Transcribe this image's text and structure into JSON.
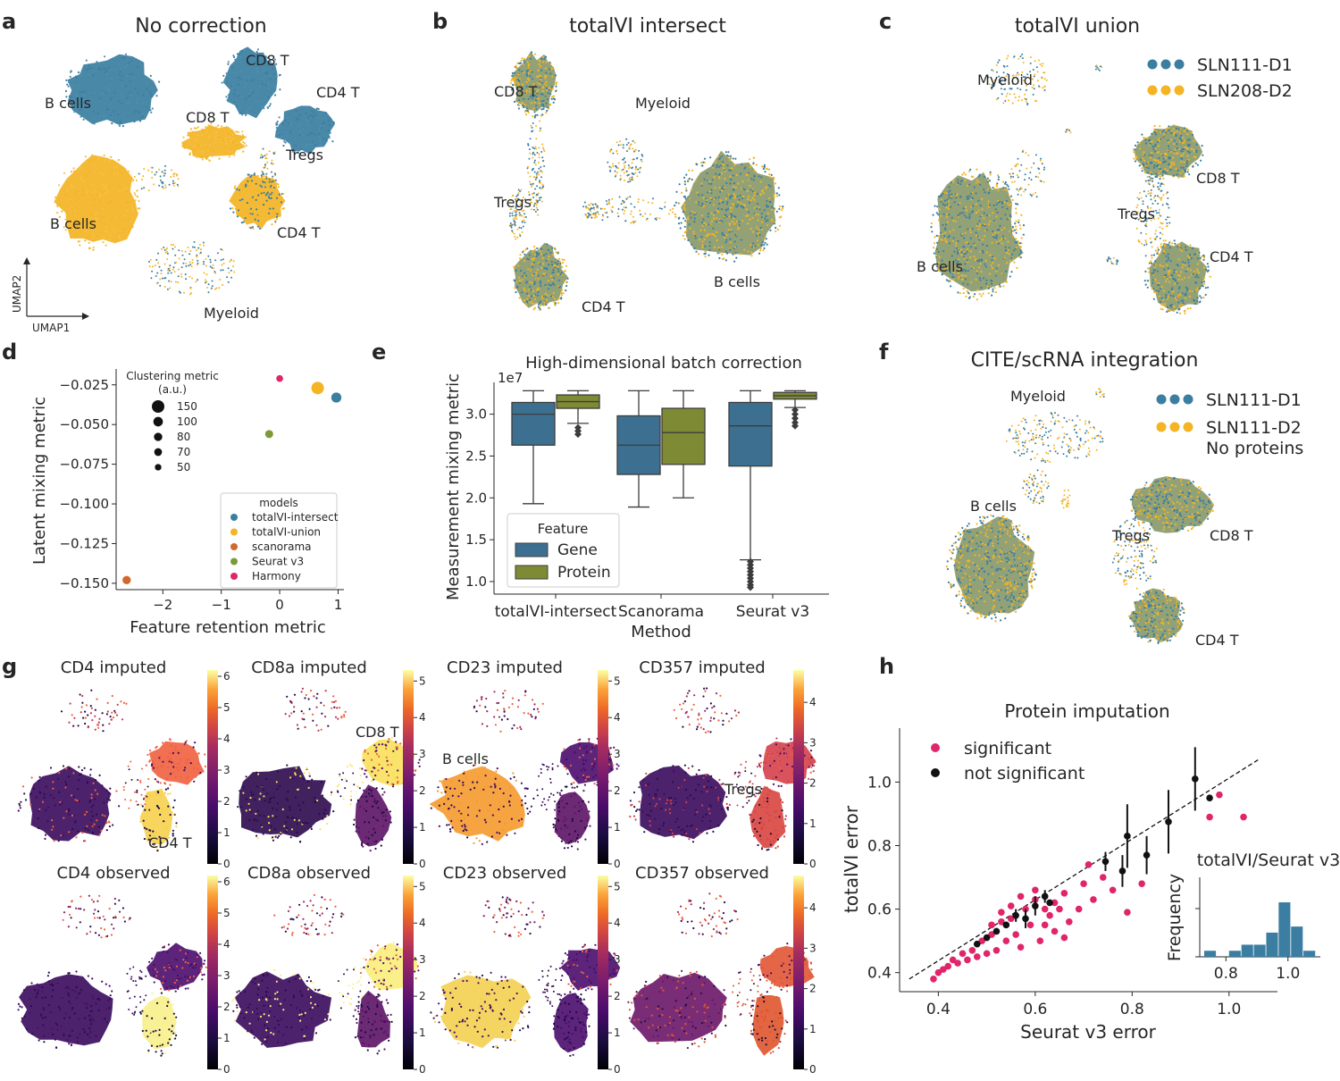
{
  "colors": {
    "batch1": "#3b7ea1",
    "batch2": "#f4b424",
    "gene": "#3d7090",
    "protein": "#7f8a35",
    "totalvi_intersect": "#3b7ea1",
    "totalvi_union": "#f4b424",
    "scanorama": "#d2692c",
    "seurat": "#7b9b39",
    "harmony": "#e0256a",
    "significant": "#e0256a",
    "not_significant": "#111111"
  },
  "panels": {
    "a": {
      "letter": "a",
      "title": "No correction",
      "labels": [
        "B cells",
        "CD8 T",
        "CD4 T",
        "CD8 T",
        "Tregs",
        "B cells",
        "CD4 T",
        "Myeloid"
      ],
      "axis_x": "UMAP1",
      "axis_y": "UMAP2"
    },
    "b": {
      "letter": "b",
      "title": "totalVI intersect",
      "labels": [
        "CD8 T",
        "Myeloid",
        "Tregs",
        "B cells",
        "CD4 T"
      ]
    },
    "c": {
      "letter": "c",
      "title": "totalVI union",
      "labels": [
        "Myeloid",
        "CD8 T",
        "Tregs",
        "B cells",
        "CD4 T"
      ],
      "legend": [
        "SLN111-D1",
        "SLN208-D2"
      ]
    },
    "d": {
      "letter": "d"
    },
    "e": {
      "letter": "e"
    },
    "f": {
      "letter": "f",
      "title": "CITE/scRNA integration",
      "labels": [
        "Myeloid",
        "B cells",
        "Tregs",
        "CD8 T",
        "CD4 T"
      ],
      "legend": [
        "SLN111-D1",
        "SLN111-D2",
        "No proteins"
      ]
    },
    "g": {
      "letter": "g",
      "maps": [
        {
          "title": "CD4 imputed",
          "ticks": [
            "0",
            "1",
            "2",
            "3",
            "4",
            "5",
            "6"
          ],
          "label": "CD4 T"
        },
        {
          "title": "CD8a imputed",
          "ticks": [
            "0",
            "1",
            "2",
            "3",
            "4",
            "5"
          ],
          "label": "CD8 T"
        },
        {
          "title": "CD23 imputed",
          "ticks": [
            "0",
            "1",
            "2",
            "3",
            "4",
            "5"
          ],
          "label": "B cells"
        },
        {
          "title": "CD357 imputed",
          "ticks": [
            "0",
            "1",
            "2",
            "3",
            "4"
          ],
          "label": "Tregs"
        },
        {
          "title": "CD4 observed",
          "ticks": [
            "0",
            "1",
            "2",
            "3",
            "4",
            "5",
            "6"
          ],
          "label": ""
        },
        {
          "title": "CD8a observed",
          "ticks": [
            "0",
            "1",
            "2",
            "3",
            "4",
            "5"
          ],
          "label": ""
        },
        {
          "title": "CD23 observed",
          "ticks": [
            "0",
            "1",
            "2",
            "3",
            "4",
            "5"
          ],
          "label": ""
        },
        {
          "title": "CD357 observed",
          "ticks": [
            "0",
            "1",
            "2",
            "3",
            "4"
          ],
          "label": ""
        }
      ]
    },
    "h": {
      "letter": "h"
    }
  },
  "chart_data": [
    {
      "panel": "d",
      "type": "scatter",
      "xlabel": "Feature retention metric",
      "ylabel": "Latent mixing metric",
      "xlim": [
        -2.8,
        1.1
      ],
      "ylim": [
        -0.154,
        -0.015
      ],
      "xticks": [
        -2,
        -1,
        0,
        1
      ],
      "yticks": [
        -0.025,
        -0.05,
        -0.075,
        -0.1,
        -0.125,
        -0.15
      ],
      "xtick_labels": [
        "−2",
        "−1",
        "0",
        "1"
      ],
      "ytick_labels": [
        "−0.025",
        "−0.050",
        "−0.075",
        "−0.100",
        "−0.125",
        "−0.150"
      ],
      "points": [
        {
          "model": "totalVI-intersect",
          "x": 0.97,
          "y": -0.033,
          "clustering": 110
        },
        {
          "model": "totalVI-union",
          "x": 0.65,
          "y": -0.027,
          "clustering": 150
        },
        {
          "model": "scanorama",
          "x": -2.62,
          "y": -0.148,
          "clustering": 80
        },
        {
          "model": "Seurat v3",
          "x": -0.18,
          "y": -0.056,
          "clustering": 75
        },
        {
          "model": "Harmony",
          "x": 0.0,
          "y": -0.021,
          "clustering": 55
        }
      ],
      "size_legend": {
        "title": "Clustering metric (a.u.)",
        "title_line1": "Clustering metric",
        "title_line2": "(a.u.)",
        "values": [
          "150",
          "100",
          "80",
          "70",
          "50"
        ]
      },
      "legend_title": "models",
      "legend": [
        "totalVI-intersect",
        "totalVI-union",
        "scanorama",
        "Seurat v3",
        "Harmony"
      ]
    },
    {
      "panel": "e",
      "type": "box",
      "title": "High-dimensional batch correction",
      "xlabel": "Method",
      "ylabel": "Measurement mixing metric",
      "scale_label": "1e7",
      "ylim": [
        0.85,
        3.38
      ],
      "yticks": [
        1.0,
        1.5,
        2.0,
        2.5,
        3.0
      ],
      "ytick_labels": [
        "1.0",
        "1.5",
        "2.0",
        "2.5",
        "3.0"
      ],
      "categories": [
        "totalVI-intersect",
        "Scanorama",
        "Seurat v3"
      ],
      "legend_title": "Feature",
      "series": [
        {
          "name": "Gene",
          "boxes": [
            {
              "whislo": 1.93,
              "q1": 2.63,
              "med": 3.0,
              "q3": 3.14,
              "whishi": 3.28,
              "fliers": []
            },
            {
              "whislo": 1.89,
              "q1": 2.28,
              "med": 2.63,
              "q3": 2.98,
              "whishi": 3.28,
              "fliers": []
            },
            {
              "whislo": 1.26,
              "q1": 2.38,
              "med": 2.86,
              "q3": 3.14,
              "whishi": 3.28,
              "fliers": [
                1.24,
                1.2,
                1.16,
                1.12,
                1.08,
                1.04,
                1.0,
                0.96,
                0.93
              ]
            }
          ]
        },
        {
          "name": "Protein",
          "boxes": [
            {
              "whislo": 2.89,
              "q1": 3.07,
              "med": 3.15,
              "q3": 3.23,
              "whishi": 3.28,
              "fliers": [
                2.84,
                2.8,
                2.76
              ]
            },
            {
              "whislo": 2.0,
              "q1": 2.4,
              "med": 2.78,
              "q3": 3.07,
              "whishi": 3.28,
              "fliers": []
            },
            {
              "whislo": 3.08,
              "q1": 3.18,
              "med": 3.22,
              "q3": 3.26,
              "whishi": 3.28,
              "fliers": [
                3.05,
                3.0,
                2.95,
                2.9,
                2.86
              ]
            }
          ]
        }
      ]
    },
    {
      "panel": "h",
      "type": "scatter",
      "title": "Protein imputation",
      "xlabel": "Seurat v3 error",
      "ylabel": "totalVI error",
      "xlim": [
        0.32,
        1.1
      ],
      "ylim": [
        0.34,
        1.17
      ],
      "xticks": [
        0.4,
        0.6,
        0.8,
        1.0
      ],
      "yticks": [
        0.4,
        0.6,
        0.8,
        1.0
      ],
      "xtick_labels": [
        "0.4",
        "0.6",
        "0.8",
        "1.0"
      ],
      "ytick_labels": [
        "0.4",
        "0.6",
        "0.8",
        "1.0"
      ],
      "legend": [
        "significant",
        "not significant"
      ],
      "identity_line": [
        [
          0.34,
          0.38
        ],
        [
          1.06,
          1.07
        ]
      ],
      "not_significant": [
        {
          "x": 0.93,
          "y": 1.01,
          "err": 0.1
        },
        {
          "x": 0.96,
          "y": 0.95,
          "err": 0.01
        },
        {
          "x": 0.875,
          "y": 0.875,
          "err": 0.1
        },
        {
          "x": 0.79,
          "y": 0.83,
          "err": 0.1
        },
        {
          "x": 0.83,
          "y": 0.77,
          "err": 0.06
        },
        {
          "x": 0.745,
          "y": 0.75,
          "err": 0.03
        },
        {
          "x": 0.78,
          "y": 0.72,
          "err": 0.05
        },
        {
          "x": 0.62,
          "y": 0.64,
          "err": 0.02
        },
        {
          "x": 0.6,
          "y": 0.61,
          "err": 0.03
        },
        {
          "x": 0.58,
          "y": 0.57,
          "err": 0.03
        },
        {
          "x": 0.56,
          "y": 0.58,
          "err": 0.02
        },
        {
          "x": 0.52,
          "y": 0.53,
          "err": 0.01
        },
        {
          "x": 0.5,
          "y": 0.51,
          "err": 0.01
        },
        {
          "x": 0.48,
          "y": 0.49,
          "err": 0.01
        },
        {
          "x": 0.54,
          "y": 0.55,
          "err": 0.01
        },
        {
          "x": 0.63,
          "y": 0.62,
          "err": 0.01
        }
      ],
      "significant": [
        {
          "x": 0.98,
          "y": 0.96
        },
        {
          "x": 0.96,
          "y": 0.89
        },
        {
          "x": 1.03,
          "y": 0.89
        },
        {
          "x": 0.82,
          "y": 0.68
        },
        {
          "x": 0.79,
          "y": 0.59
        },
        {
          "x": 0.74,
          "y": 0.7
        },
        {
          "x": 0.76,
          "y": 0.66
        },
        {
          "x": 0.72,
          "y": 0.63
        },
        {
          "x": 0.7,
          "y": 0.68
        },
        {
          "x": 0.69,
          "y": 0.6
        },
        {
          "x": 0.67,
          "y": 0.56
        },
        {
          "x": 0.66,
          "y": 0.51
        },
        {
          "x": 0.65,
          "y": 0.6
        },
        {
          "x": 0.64,
          "y": 0.53
        },
        {
          "x": 0.63,
          "y": 0.58
        },
        {
          "x": 0.62,
          "y": 0.55
        },
        {
          "x": 0.61,
          "y": 0.5
        },
        {
          "x": 0.6,
          "y": 0.63
        },
        {
          "x": 0.59,
          "y": 0.55
        },
        {
          "x": 0.58,
          "y": 0.6
        },
        {
          "x": 0.57,
          "y": 0.48
        },
        {
          "x": 0.56,
          "y": 0.52
        },
        {
          "x": 0.55,
          "y": 0.57
        },
        {
          "x": 0.54,
          "y": 0.5
        },
        {
          "x": 0.53,
          "y": 0.56
        },
        {
          "x": 0.52,
          "y": 0.47
        },
        {
          "x": 0.51,
          "y": 0.52
        },
        {
          "x": 0.5,
          "y": 0.46
        },
        {
          "x": 0.49,
          "y": 0.5
        },
        {
          "x": 0.48,
          "y": 0.45
        },
        {
          "x": 0.47,
          "y": 0.47
        },
        {
          "x": 0.46,
          "y": 0.44
        },
        {
          "x": 0.45,
          "y": 0.46
        },
        {
          "x": 0.44,
          "y": 0.43
        },
        {
          "x": 0.43,
          "y": 0.44
        },
        {
          "x": 0.42,
          "y": 0.42
        },
        {
          "x": 0.41,
          "y": 0.41
        },
        {
          "x": 0.4,
          "y": 0.4
        },
        {
          "x": 0.39,
          "y": 0.38
        },
        {
          "x": 0.55,
          "y": 0.61
        },
        {
          "x": 0.57,
          "y": 0.64
        },
        {
          "x": 0.6,
          "y": 0.66
        },
        {
          "x": 0.53,
          "y": 0.59
        },
        {
          "x": 0.51,
          "y": 0.55
        },
        {
          "x": 0.71,
          "y": 0.74
        },
        {
          "x": 0.66,
          "y": 0.65
        },
        {
          "x": 0.64,
          "y": 0.62
        },
        {
          "x": 0.62,
          "y": 0.6
        }
      ]
    },
    {
      "panel": "h-inset",
      "type": "bar",
      "title": "totalVI/Seurat v3",
      "ylabel": "Frequency",
      "xticks": [
        0.8,
        1.0
      ],
      "xtick_labels": [
        "0.8",
        "1.0"
      ],
      "bin_edges": [
        0.73,
        0.77,
        0.81,
        0.85,
        0.89,
        0.93,
        0.97,
        1.01,
        1.05,
        1.09
      ],
      "values": [
        1,
        0,
        1,
        2,
        2,
        4,
        9,
        5,
        1
      ]
    }
  ]
}
